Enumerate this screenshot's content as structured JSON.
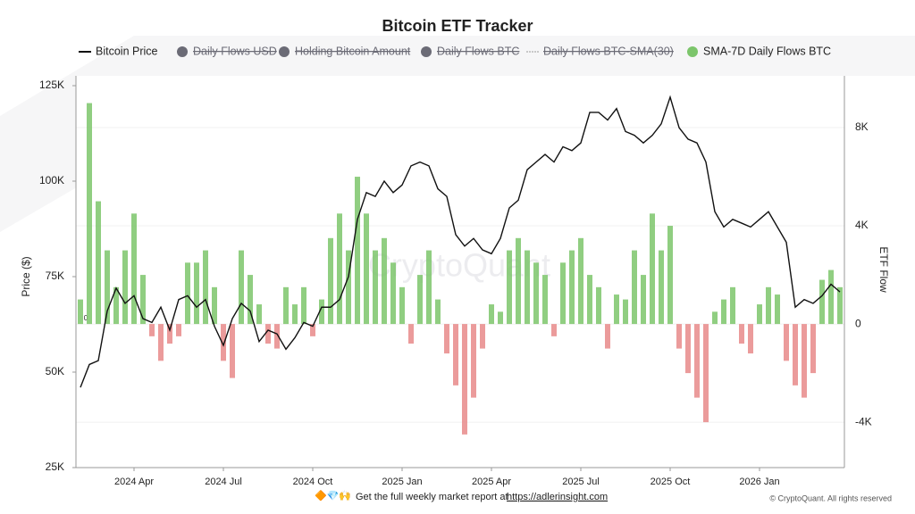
{
  "chart_data": {
    "type": "bar-line",
    "title": "Bitcoin ETF Tracker",
    "y_label": "Price ($)",
    "y2_label": "ETF Flow",
    "watermark": "CryptoQuant",
    "zero_marker": "0",
    "categories": [
      null,
      null,
      null,
      null,
      null,
      null,
      "2024 Apr",
      null,
      null,
      null,
      null,
      null,
      null,
      null,
      null,
      null,
      "2024 Jul",
      null,
      null,
      null,
      null,
      null,
      null,
      null,
      null,
      null,
      "2024 Oct",
      null,
      null,
      null,
      null,
      null,
      null,
      null,
      null,
      null,
      "2025 Jan",
      null,
      null,
      null,
      null,
      null,
      null,
      null,
      null,
      null,
      "2025 Apr",
      null,
      null,
      null,
      null,
      null,
      null,
      null,
      null,
      null,
      "2025 Jul",
      null,
      null,
      null,
      null,
      null,
      null,
      null,
      null,
      null,
      "2025 Oct",
      null,
      null,
      null,
      null,
      null,
      null,
      null,
      null,
      null,
      "2026 Jan",
      null,
      null,
      null,
      null,
      null,
      null,
      null,
      null,
      null
    ],
    "series": [
      {
        "name": "Bitcoin Price",
        "type": "line",
        "color": "#111111",
        "axis": "y",
        "values": [
          46000,
          52000,
          53000,
          66000,
          72000,
          68000,
          70000,
          64000,
          63000,
          67000,
          61000,
          69000,
          70000,
          67000,
          69000,
          62000,
          57000,
          64000,
          68000,
          66000,
          58000,
          61000,
          60000,
          56000,
          59000,
          63000,
          62000,
          67000,
          67000,
          69000,
          75000,
          90000,
          97000,
          96000,
          100000,
          97000,
          99000,
          104000,
          105000,
          104000,
          98000,
          96000,
          86000,
          83000,
          85000,
          82000,
          81000,
          85000,
          93000,
          95000,
          103000,
          105000,
          107000,
          105000,
          109000,
          108000,
          110000,
          118000,
          118000,
          116000,
          119000,
          113000,
          112000,
          110000,
          112000,
          115000,
          122000,
          114000,
          111000,
          110000,
          105000,
          92000,
          88000,
          90000,
          89000,
          88000,
          90000,
          92000,
          88000,
          84000,
          67000,
          69000,
          68000,
          70000,
          73000,
          71000
        ]
      },
      {
        "name": "SMA-7D Daily Flows BTC",
        "type": "bar",
        "color": "#7cc56b",
        "negative_color": "#e88a8a",
        "axis": "y2",
        "values": [
          1000,
          9000,
          5000,
          3000,
          1500,
          3000,
          4500,
          2000,
          -500,
          -1500,
          -800,
          -500,
          2500,
          2500,
          3000,
          1500,
          -1500,
          -2200,
          3000,
          2000,
          800,
          -800,
          -1000,
          1500,
          800,
          1500,
          -500,
          1000,
          3500,
          4500,
          3000,
          6000,
          4500,
          3000,
          3500,
          2500,
          1500,
          -800,
          2000,
          3000,
          1000,
          -1200,
          -2500,
          -4500,
          -3000,
          -1000,
          800,
          500,
          3000,
          3500,
          3000,
          2500,
          2000,
          -500,
          2500,
          3000,
          3500,
          2000,
          1500,
          -1000,
          1200,
          1000,
          3000,
          2000,
          4500,
          3000,
          4000,
          -1000,
          -2000,
          -3000,
          -4000,
          500,
          1000,
          1500,
          -800,
          -1200,
          800,
          1500,
          1200,
          -1500,
          -2500,
          -3000,
          -2000,
          1800,
          2200,
          1500
        ]
      }
    ],
    "hidden_series": [
      {
        "name": "Daily Flows USD",
        "color": "#6b6b76",
        "marker": "circle"
      },
      {
        "name": "Holding Bitcoin Amount",
        "color": "#6b6b76",
        "marker": "circle"
      },
      {
        "name": "Daily Flows BTC",
        "color": "#6b6b76",
        "marker": "circle"
      },
      {
        "name": "Daily Flows BTC-SMA(30)",
        "color": "#9a9a9a",
        "marker": "dashed-line"
      }
    ],
    "ylim": [
      25000,
      125000
    ],
    "yticks": [
      {
        "value": 25000,
        "label": "25K"
      },
      {
        "value": 50000,
        "label": "50K"
      },
      {
        "value": 75000,
        "label": "75K"
      },
      {
        "value": 100000,
        "label": "100K"
      },
      {
        "value": 125000,
        "label": "125K"
      }
    ],
    "y2lim": [
      -5850,
      9710
    ],
    "y2ticks": [
      {
        "value": -4000,
        "label": "-4K"
      },
      0,
      {
        "value": 4000,
        "label": "4K"
      },
      {
        "value": 8000,
        "label": "8K"
      }
    ],
    "grid": true
  },
  "footer": {
    "emoji": "🔶💎🙌",
    "text": "Get the full weekly market report at",
    "link": "https://adlerinsight.com",
    "copyright": "© CryptoQuant. All rights reserved"
  }
}
